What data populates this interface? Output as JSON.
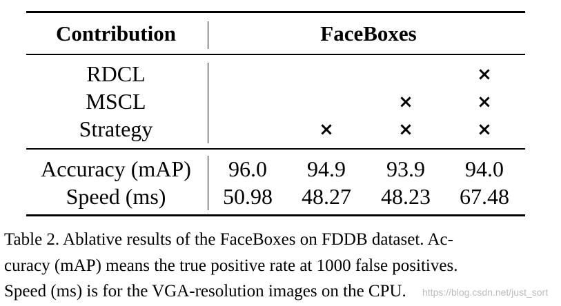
{
  "table": {
    "header": {
      "left": "Contribution",
      "right": "FaceBoxes"
    },
    "contribution_rows": [
      {
        "label": "RDCL",
        "marks": [
          "",
          "",
          "",
          "×"
        ]
      },
      {
        "label": "MSCL",
        "marks": [
          "",
          "",
          "×",
          "×"
        ]
      },
      {
        "label": "Strategy",
        "marks": [
          "",
          "×",
          "×",
          "×"
        ]
      }
    ],
    "metric_rows": [
      {
        "label": "Accuracy (mAP)",
        "values": [
          "96.0",
          "94.9",
          "93.9",
          "94.0"
        ]
      },
      {
        "label": "Speed (ms)",
        "values": [
          "50.98",
          "48.27",
          "48.23",
          "67.48"
        ]
      }
    ]
  },
  "caption": {
    "lines": [
      "Table 2. Ablative results of the FaceBoxes on FDDB dataset. Ac-",
      "curacy (mAP) means the true positive rate at 1000 false positives.",
      "Speed (ms) is for the VGA-resolution images on the CPU."
    ]
  },
  "watermark": "https://blog.csdn.net/just_sort"
}
